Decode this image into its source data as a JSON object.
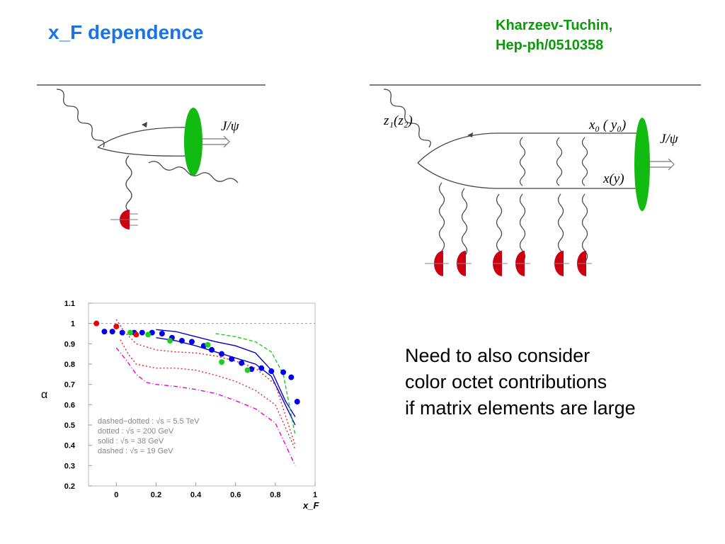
{
  "slide": {
    "title": "x_F dependence",
    "reference": [
      "Kharzeev-Tuchin,",
      "Hep-ph/0510358"
    ],
    "note": [
      "Need to also consider",
      "color octet contributions",
      "if matrix elements are large"
    ]
  },
  "diagram_left": {
    "label_jpsi": "J/ψ"
  },
  "diagram_right": {
    "label_z": "z₁(z₂)",
    "label_x0": "x₀ ( y₀)",
    "label_x": "x(y)",
    "label_jpsi": "J/ψ"
  },
  "colors": {
    "title": "#1a73e8",
    "reference": "#0a9a0a",
    "gluon_blob": "#11bb11",
    "nucleon": "#cc0011"
  },
  "chart_data": {
    "type": "scatter",
    "xlabel": "x_F",
    "ylabel": "α",
    "xlim": [
      -0.14,
      1
    ],
    "ylim": [
      0.2,
      1.1
    ],
    "x_ticks": [
      "0",
      "0.2",
      "0.4",
      "0.6",
      "0.8",
      "1"
    ],
    "y_ticks": [
      "0.2",
      "0.3",
      "0.4",
      "0.5",
      "0.6",
      "0.7",
      "0.8",
      "0.9",
      "1",
      "1.1"
    ],
    "reference_line": 1,
    "legend": [
      "dashed−dotted : √s = 5.5 TeV",
      "dotted : √s = 200 GeV",
      "solid : √s = 38 GeV",
      "dashed : √s = 19 GeV"
    ],
    "series": [
      {
        "color": "#0000ee",
        "marker": "circle",
        "x": [
          -0.06,
          -0.02,
          0.03,
          0.09,
          0.13,
          0.18,
          0.23,
          0.28,
          0.33,
          0.38,
          0.44,
          0.48,
          0.53,
          0.58,
          0.63,
          0.68,
          0.73,
          0.78,
          0.84,
          0.88,
          0.91
        ],
        "y": [
          0.96,
          0.96,
          0.955,
          0.955,
          0.955,
          0.955,
          0.95,
          0.93,
          0.915,
          0.91,
          0.89,
          0.87,
          0.85,
          0.825,
          0.805,
          0.775,
          0.78,
          0.765,
          0.76,
          0.735,
          0.615
        ]
      },
      {
        "color": "#22cc22",
        "marker": "circle",
        "x": [
          0.07,
          0.16,
          0.27,
          0.46,
          0.53,
          0.66
        ],
        "y": [
          0.955,
          0.945,
          0.915,
          0.895,
          0.81,
          0.77
        ]
      },
      {
        "color": "#ee0000",
        "marker": "circle",
        "x": [
          -0.1,
          0.0,
          0.1
        ],
        "y": [
          1.0,
          0.985,
          0.945
        ]
      }
    ],
    "curves": [
      {
        "color": "#0000cc",
        "style": "solid",
        "x": [
          0.2,
          0.3,
          0.4,
          0.5,
          0.6,
          0.7,
          0.78,
          0.85,
          0.9
        ],
        "y": [
          0.97,
          0.96,
          0.935,
          0.91,
          0.89,
          0.855,
          0.77,
          0.62,
          0.54
        ]
      },
      {
        "color": "#0000cc",
        "style": "solid",
        "x": [
          0.2,
          0.3,
          0.4,
          0.5,
          0.6,
          0.7,
          0.78,
          0.85,
          0.9
        ],
        "y": [
          0.93,
          0.915,
          0.89,
          0.86,
          0.83,
          0.8,
          0.74,
          0.6,
          0.5
        ]
      },
      {
        "color": "#22cc22",
        "style": "dashed",
        "x": [
          0.5,
          0.6,
          0.7,
          0.78,
          0.84,
          0.9
        ],
        "y": [
          0.95,
          0.935,
          0.91,
          0.86,
          0.75,
          0.45
        ]
      },
      {
        "color": "#ee2222",
        "style": "dotted",
        "x": [
          0.0,
          0.04,
          0.1,
          0.2,
          0.3,
          0.4,
          0.5,
          0.6,
          0.7,
          0.8,
          0.9
        ],
        "y": [
          1.02,
          0.96,
          0.9,
          0.87,
          0.86,
          0.855,
          0.84,
          0.815,
          0.78,
          0.7,
          0.4
        ]
      },
      {
        "color": "#ee2222",
        "style": "dotted",
        "x": [
          0.02,
          0.06,
          0.1,
          0.2,
          0.3,
          0.4,
          0.5,
          0.6,
          0.7,
          0.8,
          0.9
        ],
        "y": [
          0.92,
          0.85,
          0.8,
          0.78,
          0.78,
          0.77,
          0.745,
          0.715,
          0.67,
          0.6,
          0.38
        ]
      },
      {
        "color": "#ee00cc",
        "style": "dashdot",
        "x": [
          0.0,
          0.05,
          0.1,
          0.15,
          0.2,
          0.3,
          0.4,
          0.5,
          0.6,
          0.7,
          0.8,
          0.9
        ],
        "y": [
          0.88,
          0.82,
          0.75,
          0.71,
          0.7,
          0.69,
          0.675,
          0.655,
          0.62,
          0.58,
          0.51,
          0.3
        ]
      }
    ]
  }
}
